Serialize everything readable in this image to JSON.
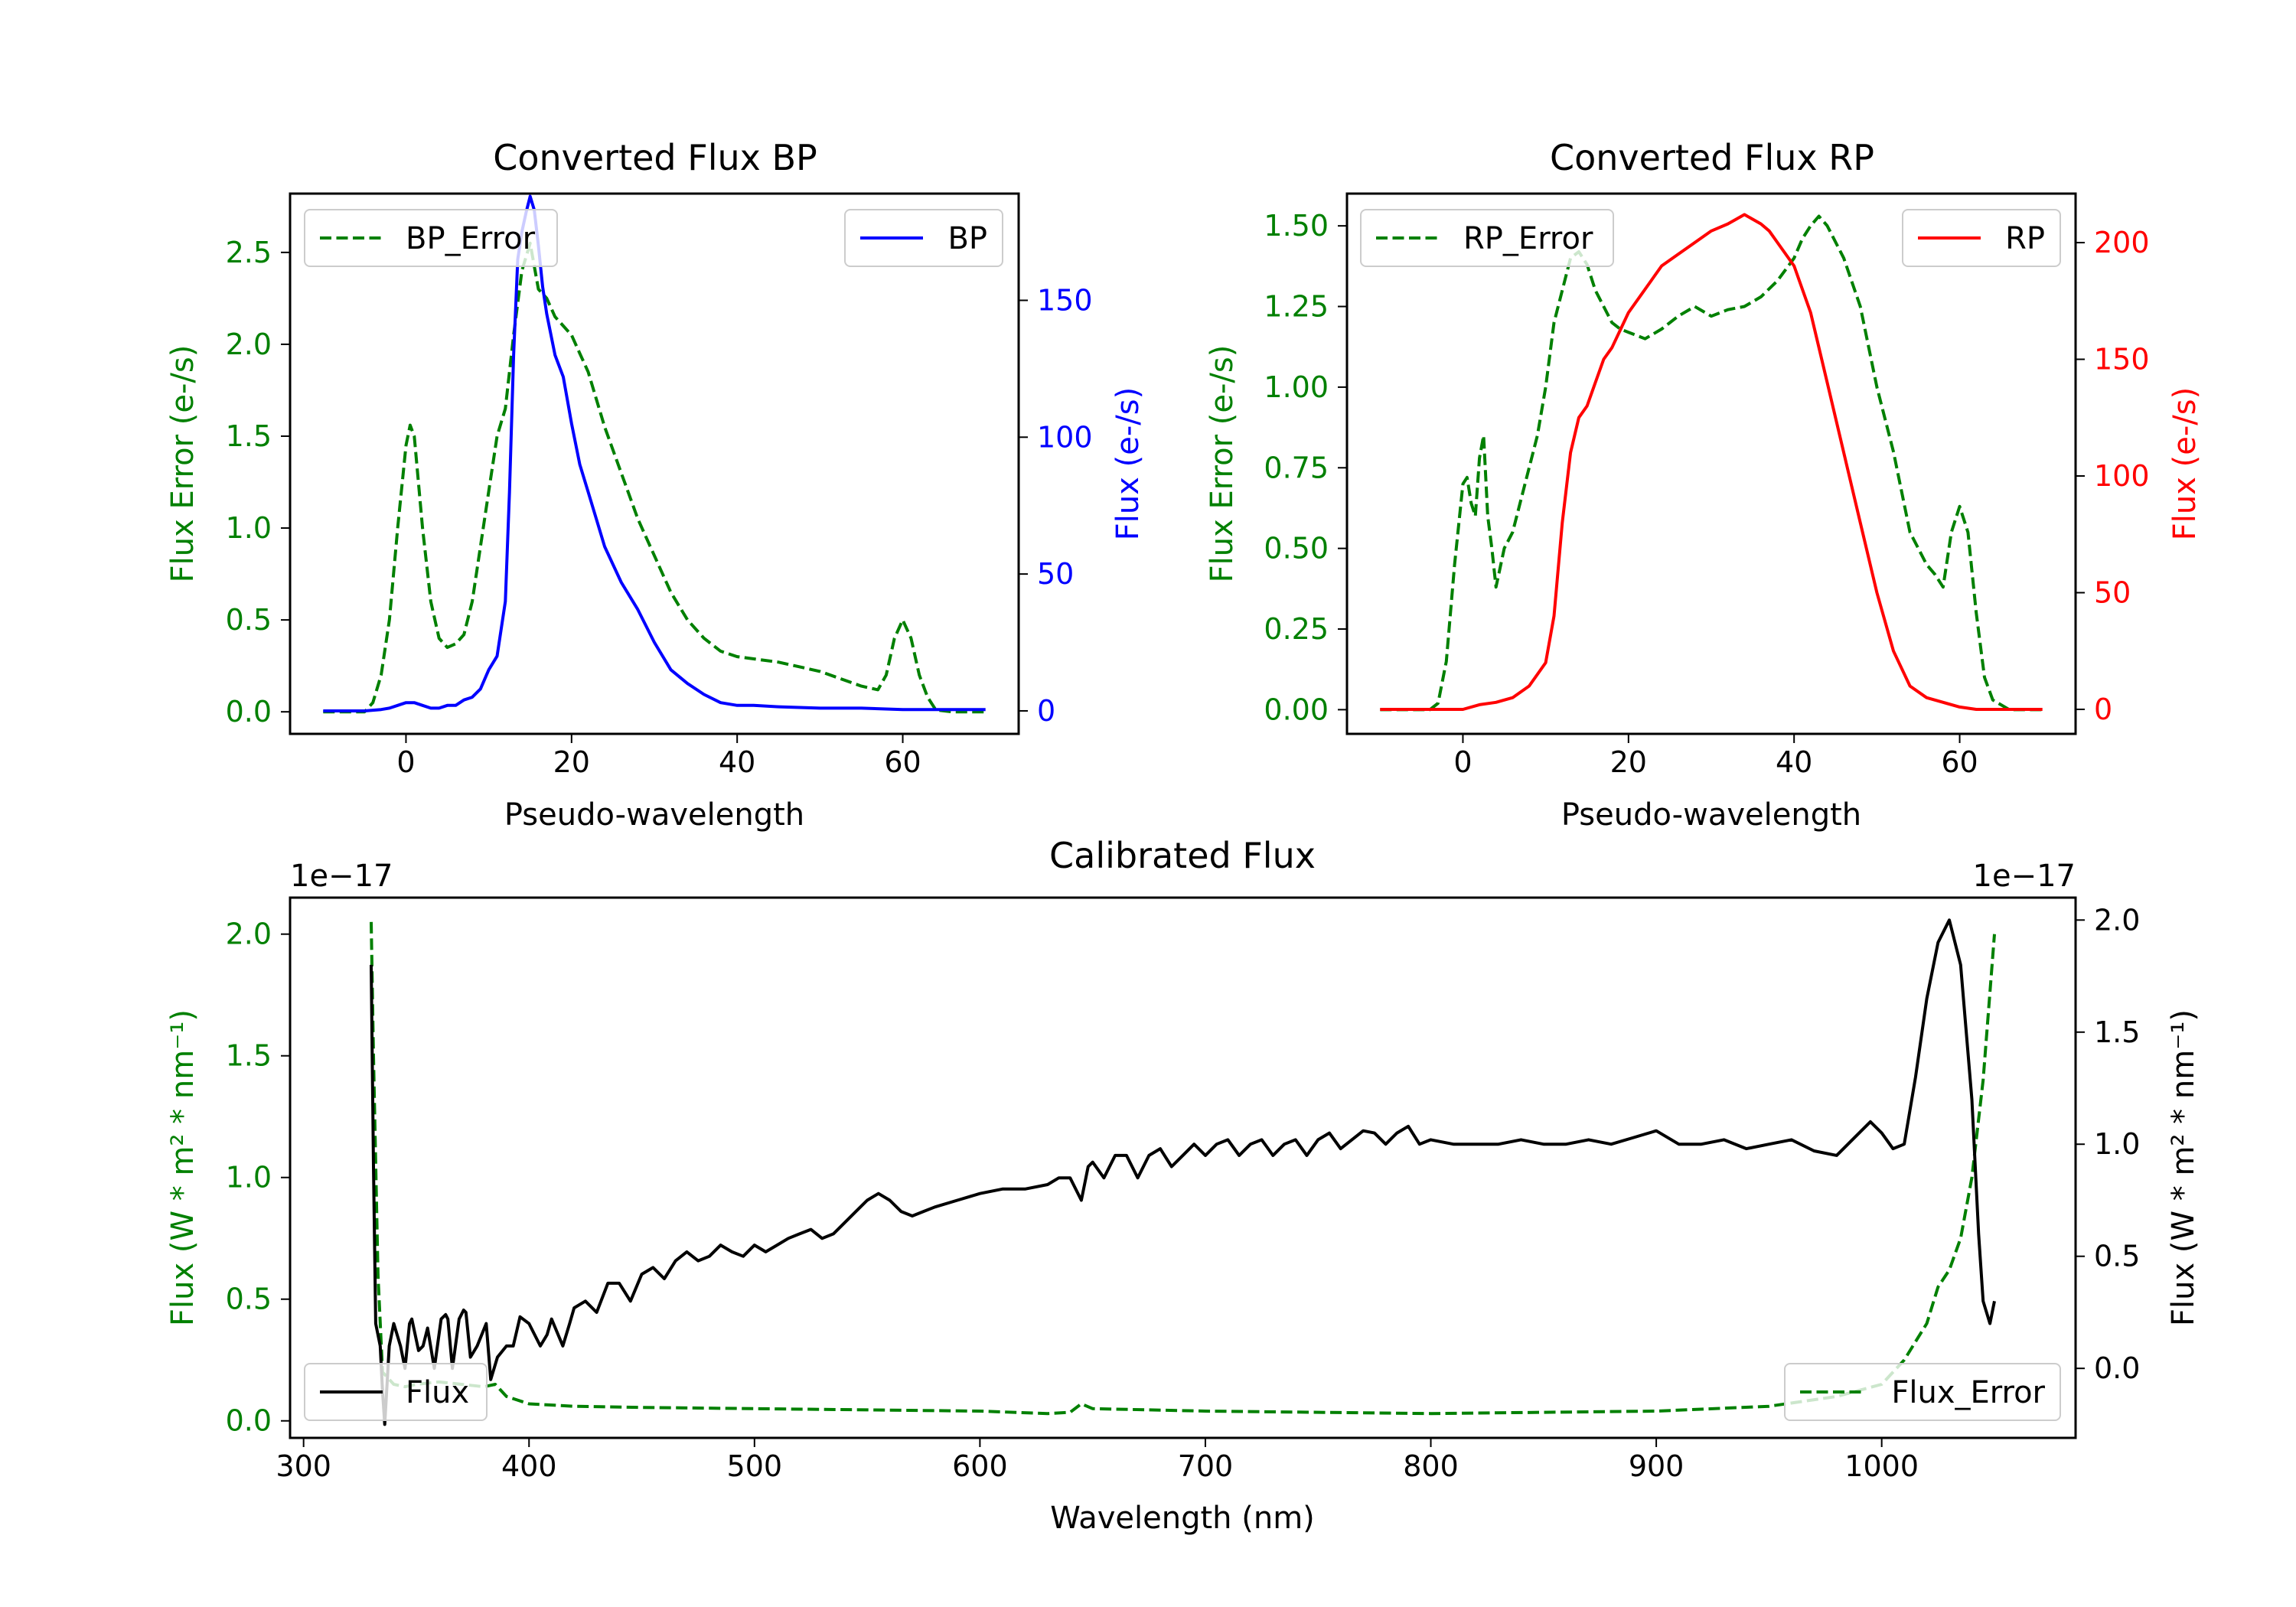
{
  "chart_data": [
    {
      "type": "line",
      "title": "Converted Flux BP",
      "xlabel": "Pseudo-wavelength",
      "ylabel_left": "Flux Error (e-/s)",
      "ylabel_right": "Flux (e-/s)",
      "xlim": [
        -14,
        74
      ],
      "ylim_left": [
        -0.12,
        2.82
      ],
      "ylim_right": [
        -8.4,
        189
      ],
      "xticks": [
        0,
        20,
        40,
        60
      ],
      "yticks_left": [
        0.0,
        0.5,
        1.0,
        1.5,
        2.0,
        2.5
      ],
      "yticks_right": [
        0,
        50,
        100,
        150
      ],
      "colors": {
        "error": "#008000",
        "flux": "#0000ff"
      },
      "series": [
        {
          "name": "BP_Error",
          "axis": "left",
          "style": "dashed",
          "x": [
            -10,
            -5,
            -4,
            -3,
            -2,
            -1,
            0,
            0.5,
            1,
            2,
            3,
            4,
            5,
            6,
            7,
            8,
            9,
            10,
            11,
            12,
            13,
            14,
            15,
            16,
            17,
            18,
            19,
            20,
            21,
            22,
            23,
            24,
            26,
            28,
            30,
            32,
            34,
            36,
            38,
            40,
            45,
            50,
            55,
            57,
            58,
            59,
            60,
            61,
            62,
            63,
            64,
            66,
            70
          ],
          "y": [
            0,
            0,
            0.05,
            0.2,
            0.5,
            1.0,
            1.45,
            1.56,
            1.5,
            1.0,
            0.6,
            0.4,
            0.35,
            0.37,
            0.42,
            0.6,
            0.9,
            1.2,
            1.5,
            1.65,
            2.05,
            2.4,
            2.55,
            2.3,
            2.25,
            2.15,
            2.1,
            2.05,
            1.95,
            1.85,
            1.7,
            1.55,
            1.3,
            1.05,
            0.85,
            0.65,
            0.5,
            0.4,
            0.33,
            0.3,
            0.27,
            0.22,
            0.14,
            0.12,
            0.2,
            0.4,
            0.5,
            0.4,
            0.2,
            0.08,
            0.01,
            0,
            0
          ]
        },
        {
          "name": "BP",
          "axis": "right",
          "style": "solid",
          "x": [
            -10,
            -5,
            -3,
            -2,
            -1,
            0,
            1,
            2,
            3,
            4,
            5,
            6,
            7,
            8,
            9,
            10,
            11,
            12,
            12.5,
            13,
            13.5,
            14,
            14.5,
            15,
            15.5,
            16,
            16.5,
            17,
            18,
            19,
            20,
            21,
            22,
            23,
            24,
            26,
            28,
            30,
            32,
            34,
            36,
            38,
            40,
            42,
            45,
            50,
            55,
            60,
            65,
            70
          ],
          "y": [
            0,
            0,
            0.5,
            1,
            2,
            3,
            3,
            2,
            1,
            1,
            2,
            2,
            4,
            5,
            8,
            15,
            20,
            40,
            80,
            130,
            165,
            175,
            182,
            188,
            183,
            170,
            155,
            145,
            130,
            122,
            105,
            90,
            80,
            70,
            60,
            47,
            37,
            25,
            15,
            10,
            6,
            3,
            2,
            2,
            1.5,
            1,
            1,
            0.5,
            0.5,
            0.5
          ]
        }
      ],
      "legend": [
        {
          "label": "BP_Error",
          "position": "top-left"
        },
        {
          "label": "BP",
          "position": "top-right"
        }
      ]
    },
    {
      "type": "line",
      "title": "Converted Flux RP",
      "xlabel": "Pseudo-wavelength",
      "ylabel_left": "Flux Error (e-/s)",
      "ylabel_right": "Flux (e-/s)",
      "xlim": [
        -14,
        74
      ],
      "ylim_left": [
        -0.075,
        1.6
      ],
      "ylim_right": [
        -10.5,
        221
      ],
      "xticks": [
        0,
        20,
        40,
        60
      ],
      "yticks_left": [
        0.0,
        0.25,
        0.5,
        0.75,
        1.0,
        1.25,
        1.5
      ],
      "yticks_right": [
        0,
        50,
        100,
        150,
        200
      ],
      "colors": {
        "error": "#008000",
        "flux": "#ff0000"
      },
      "series": [
        {
          "name": "RP_Error",
          "axis": "left",
          "style": "dashed",
          "x": [
            -10,
            -4,
            -3,
            -2,
            -1,
            0,
            0.5,
            1,
            1.5,
            2,
            2.5,
            3,
            3.5,
            4,
            5,
            6,
            7,
            8,
            9,
            10,
            11,
            12,
            13,
            14,
            15,
            16,
            17,
            18,
            19,
            20,
            22,
            24,
            26,
            28,
            30,
            32,
            34,
            36,
            38,
            40,
            41,
            42,
            43,
            44,
            46,
            48,
            50,
            52,
            54,
            55,
            56,
            57,
            58,
            59,
            60,
            61,
            62,
            63,
            64,
            66,
            70
          ],
          "y": [
            0,
            0,
            0.02,
            0.15,
            0.45,
            0.7,
            0.72,
            0.64,
            0.6,
            0.78,
            0.85,
            0.6,
            0.5,
            0.38,
            0.5,
            0.55,
            0.65,
            0.75,
            0.85,
            1.0,
            1.2,
            1.3,
            1.4,
            1.42,
            1.38,
            1.3,
            1.25,
            1.2,
            1.18,
            1.17,
            1.15,
            1.18,
            1.22,
            1.25,
            1.22,
            1.24,
            1.25,
            1.28,
            1.33,
            1.4,
            1.46,
            1.5,
            1.53,
            1.5,
            1.4,
            1.25,
            1.0,
            0.8,
            0.55,
            0.5,
            0.45,
            0.42,
            0.38,
            0.55,
            0.63,
            0.55,
            0.3,
            0.1,
            0.03,
            0,
            0
          ]
        },
        {
          "name": "RP",
          "axis": "right",
          "style": "solid",
          "x": [
            -10,
            -5,
            -2,
            0,
            2,
            4,
            6,
            8,
            10,
            11,
            12,
            13,
            14,
            15,
            16,
            17,
            18,
            20,
            22,
            24,
            26,
            28,
            30,
            32,
            33,
            34,
            35,
            36,
            37,
            38,
            40,
            42,
            44,
            46,
            48,
            50,
            52,
            54,
            56,
            58,
            60,
            62,
            65,
            70
          ],
          "y": [
            0,
            0,
            0,
            0,
            2,
            3,
            5,
            10,
            20,
            40,
            80,
            110,
            125,
            130,
            140,
            150,
            155,
            170,
            180,
            190,
            195,
            200,
            205,
            208,
            210,
            212,
            210,
            208,
            205,
            200,
            190,
            170,
            140,
            110,
            80,
            50,
            25,
            10,
            5,
            3,
            1,
            0,
            0,
            0
          ]
        }
      ],
      "legend": [
        {
          "label": "RP_Error",
          "position": "top-left"
        },
        {
          "label": "RP",
          "position": "top-right"
        }
      ]
    },
    {
      "type": "line",
      "title": "Calibrated Flux",
      "xlabel": "Wavelength (nm)",
      "ylabel_left": "Flux (W * m² * nm⁻¹)",
      "ylabel_right": "Flux (W * m² * nm⁻¹)",
      "offset_text_left": "1e−17",
      "offset_text_right": "1e−17",
      "xlim": [
        294,
        1086
      ],
      "ylim_left": [
        -0.07,
        2.15
      ],
      "ylim_right": [
        -0.31,
        2.1
      ],
      "xticks": [
        300,
        400,
        500,
        600,
        700,
        800,
        900,
        1000
      ],
      "yticks_left": [
        0.0,
        0.5,
        1.0,
        1.5,
        2.0
      ],
      "yticks_right": [
        0.0,
        0.5,
        1.0,
        1.5,
        2.0
      ],
      "colors": {
        "error": "#008000",
        "flux": "#000000"
      },
      "series": [
        {
          "name": "Flux_Error",
          "axis": "left",
          "style": "dashed",
          "x": [
            330,
            331,
            333,
            335,
            340,
            345,
            350,
            360,
            370,
            380,
            385,
            390,
            400,
            420,
            450,
            500,
            550,
            600,
            630,
            640,
            645,
            650,
            700,
            800,
            900,
            950,
            980,
            1000,
            1010,
            1020,
            1025,
            1030,
            1035,
            1040,
            1045,
            1050
          ],
          "y": [
            2.05,
            1.5,
            0.6,
            0.2,
            0.15,
            0.14,
            0.15,
            0.16,
            0.15,
            0.14,
            0.15,
            0.1,
            0.07,
            0.06,
            0.055,
            0.05,
            0.045,
            0.04,
            0.03,
            0.035,
            0.07,
            0.05,
            0.04,
            0.03,
            0.04,
            0.06,
            0.1,
            0.15,
            0.25,
            0.4,
            0.55,
            0.62,
            0.75,
            1.0,
            1.4,
            2.0
          ]
        },
        {
          "name": "Flux",
          "axis": "right",
          "style": "solid",
          "x": [
            330,
            331,
            332,
            334,
            335,
            336,
            338,
            340,
            343,
            345,
            347,
            348,
            351,
            353,
            355,
            358,
            361,
            363,
            364,
            366,
            369,
            371,
            372,
            374,
            377,
            379,
            381,
            383,
            386,
            390,
            393,
            396,
            400,
            405,
            408,
            410,
            415,
            418,
            420,
            425,
            430,
            435,
            440,
            445,
            450,
            455,
            460,
            465,
            470,
            475,
            480,
            485,
            490,
            495,
            500,
            505,
            510,
            515,
            520,
            525,
            530,
            535,
            540,
            545,
            550,
            555,
            560,
            565,
            570,
            575,
            580,
            590,
            600,
            610,
            620,
            630,
            635,
            640,
            645,
            648,
            650,
            655,
            660,
            665,
            670,
            675,
            680,
            685,
            690,
            695,
            700,
            705,
            710,
            715,
            720,
            725,
            730,
            735,
            740,
            745,
            750,
            755,
            760,
            765,
            770,
            775,
            780,
            785,
            790,
            795,
            800,
            810,
            820,
            830,
            840,
            850,
            860,
            870,
            880,
            890,
            900,
            910,
            920,
            930,
            940,
            950,
            960,
            970,
            980,
            990,
            995,
            1000,
            1005,
            1010,
            1015,
            1020,
            1025,
            1030,
            1035,
            1040,
            1043,
            1045,
            1048,
            1050
          ],
          "y": [
            1.8,
            0.9,
            0.2,
            0.1,
            -0.1,
            -0.25,
            0.1,
            0.2,
            0.1,
            0.0,
            0.2,
            0.22,
            0.08,
            0.1,
            0.18,
            0.0,
            0.22,
            0.24,
            0.22,
            0.0,
            0.22,
            0.26,
            0.25,
            0.05,
            0.1,
            0.15,
            0.2,
            -0.05,
            0.05,
            0.1,
            0.1,
            0.23,
            0.2,
            0.1,
            0.15,
            0.22,
            0.1,
            0.2,
            0.27,
            0.3,
            0.25,
            0.38,
            0.38,
            0.3,
            0.42,
            0.45,
            0.4,
            0.48,
            0.52,
            0.48,
            0.5,
            0.55,
            0.52,
            0.5,
            0.55,
            0.52,
            0.55,
            0.58,
            0.6,
            0.62,
            0.58,
            0.6,
            0.65,
            0.7,
            0.75,
            0.78,
            0.75,
            0.7,
            0.68,
            0.7,
            0.72,
            0.75,
            0.78,
            0.8,
            0.8,
            0.82,
            0.85,
            0.85,
            0.75,
            0.9,
            0.92,
            0.85,
            0.95,
            0.95,
            0.85,
            0.95,
            0.98,
            0.9,
            0.95,
            1.0,
            0.95,
            1.0,
            1.02,
            0.95,
            1.0,
            1.02,
            0.95,
            1.0,
            1.02,
            0.95,
            1.02,
            1.05,
            0.98,
            1.02,
            1.06,
            1.05,
            1.0,
            1.05,
            1.08,
            1.0,
            1.02,
            1.0,
            1.0,
            1.0,
            1.02,
            1.0,
            1.0,
            1.02,
            1.0,
            1.03,
            1.06,
            1.0,
            1.0,
            1.02,
            0.98,
            1.0,
            1.02,
            0.97,
            0.95,
            1.05,
            1.1,
            1.05,
            0.98,
            1.0,
            1.3,
            1.65,
            1.9,
            2.0,
            1.8,
            1.2,
            0.6,
            0.3,
            0.2,
            0.3
          ]
        }
      ],
      "legend": [
        {
          "label": "Flux",
          "position": "bottom-left"
        },
        {
          "label": "Flux_Error",
          "position": "bottom-right"
        }
      ]
    }
  ]
}
